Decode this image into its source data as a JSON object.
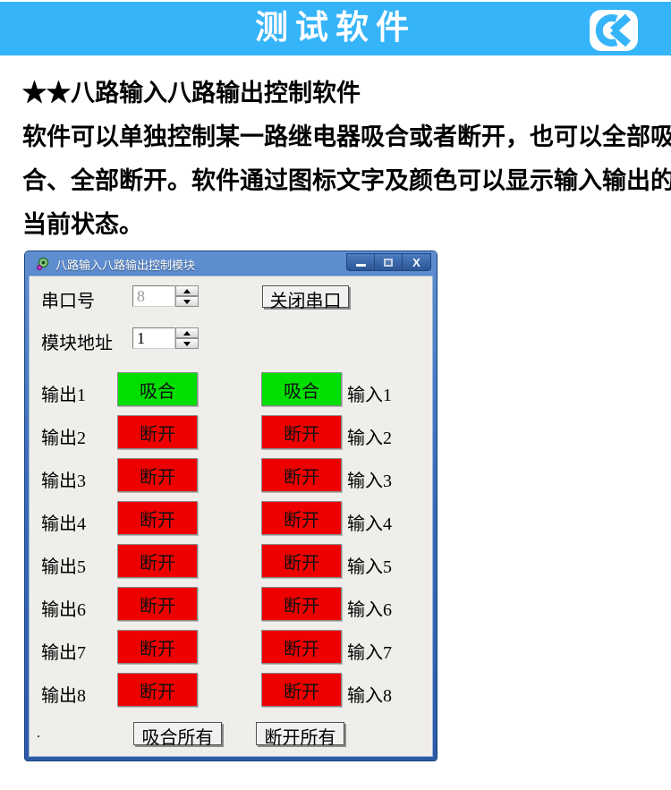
{
  "header": {
    "title": "测试软件",
    "logo_icon": "ck-logo",
    "accent_color": "#35B4FA"
  },
  "intro": {
    "heading": "★★八路输入八路输出控制软件",
    "lines": [
      "软件可以单独控制某一路继电器吸合或者断开，也可以全部吸",
      "合、全部断开。软件通过图标文字及颜色可以显示输入输出的",
      "当前状态。"
    ]
  },
  "window": {
    "title": "八路输入八路输出控制模块",
    "titlebar_buttons": [
      "minimize",
      "maximize",
      "close"
    ],
    "controls": {
      "serial_label": "串口号",
      "serial_value": "8",
      "close_serial_button": "关闭串口",
      "address_label": "模块地址",
      "address_value": "1"
    },
    "channels": [
      {
        "output_label": "输出1",
        "output_state": "吸合",
        "input_state": "吸合",
        "input_label": "输入1",
        "state": "on"
      },
      {
        "output_label": "输出2",
        "output_state": "断开",
        "input_state": "断开",
        "input_label": "输入2",
        "state": "off"
      },
      {
        "output_label": "输出3",
        "output_state": "断开",
        "input_state": "断开",
        "input_label": "输入3",
        "state": "off"
      },
      {
        "output_label": "输出4",
        "output_state": "断开",
        "input_state": "断开",
        "input_label": "输入4",
        "state": "off"
      },
      {
        "output_label": "输出5",
        "output_state": "断开",
        "input_state": "断开",
        "input_label": "输入5",
        "state": "off"
      },
      {
        "output_label": "输出6",
        "output_state": "断开",
        "input_state": "断开",
        "input_label": "输入6",
        "state": "off"
      },
      {
        "output_label": "输出7",
        "output_state": "断开",
        "input_state": "断开",
        "input_label": "输入7",
        "state": "off"
      },
      {
        "output_label": "输出8",
        "output_state": "断开",
        "input_state": "断开",
        "input_label": "输入8",
        "state": "off"
      }
    ],
    "footer": {
      "dot": ".",
      "engage_all_button": "吸合所有",
      "release_all_button": "断开所有"
    },
    "state_colors": {
      "on": "#00DF00",
      "off": "#EE0000"
    }
  }
}
